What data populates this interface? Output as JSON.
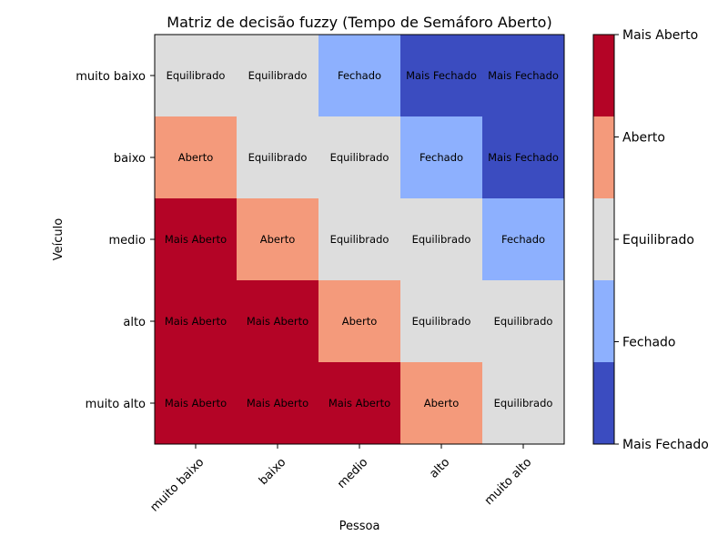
{
  "chart_data": {
    "type": "heatmap",
    "title": "Matriz de decisão fuzzy (Tempo de Semáforo Aberto)",
    "xlabel": "Pessoa",
    "ylabel": "Veículo",
    "x_categories": [
      "muito baixo",
      "baixo",
      "medio",
      "alto",
      "muito alto"
    ],
    "y_categories": [
      "muito baixo",
      "baixo",
      "medio",
      "alto",
      "muito alto"
    ],
    "levels": [
      "Mais Fechado",
      "Fechado",
      "Equilibrado",
      "Aberto",
      "Mais Aberto"
    ],
    "level_colors": [
      "#3b4cc0",
      "#8db0fe",
      "#dddddd",
      "#f49a7b",
      "#b40426"
    ],
    "matrix": [
      [
        "Equilibrado",
        "Equilibrado",
        "Fechado",
        "Mais Fechado",
        "Mais Fechado"
      ],
      [
        "Aberto",
        "Equilibrado",
        "Equilibrado",
        "Fechado",
        "Mais Fechado"
      ],
      [
        "Mais Aberto",
        "Aberto",
        "Equilibrado",
        "Equilibrado",
        "Fechado"
      ],
      [
        "Mais Aberto",
        "Mais Aberto",
        "Aberto",
        "Equilibrado",
        "Equilibrado"
      ],
      [
        "Mais Aberto",
        "Mais Aberto",
        "Mais Aberto",
        "Aberto",
        "Equilibrado"
      ]
    ],
    "colorbar": {
      "labels": [
        "Mais Aberto",
        "Aberto",
        "Equilibrado",
        "Fechado",
        "Mais Fechado"
      ]
    }
  }
}
